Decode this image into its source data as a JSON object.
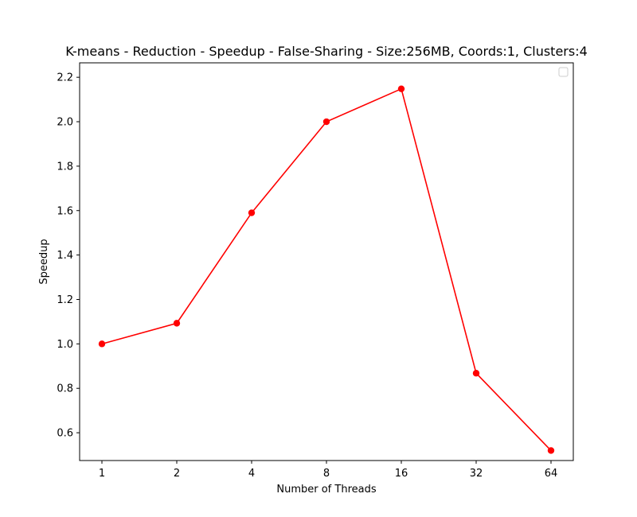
{
  "chart_data": {
    "type": "line",
    "title": "K-means - Reduction - Speedup - False-Sharing - Size:256MB, Coords:1, Clusters:4",
    "xlabel": "Number of Threads",
    "ylabel": "Speedup",
    "categories": [
      "1",
      "2",
      "4",
      "8",
      "16",
      "32",
      "64"
    ],
    "yticks": [
      "0.6",
      "0.8",
      "1.0",
      "1.2",
      "1.4",
      "1.6",
      "1.8",
      "2.0",
      "2.2"
    ],
    "ylim": [
      0.475,
      2.265
    ],
    "series": [
      {
        "values": [
          1.0,
          1.093,
          1.59,
          2.0,
          2.148,
          0.868,
          0.52
        ],
        "color": "#ff0000",
        "marker": "circle"
      }
    ],
    "grid": false,
    "legend": "top-right (empty)"
  }
}
